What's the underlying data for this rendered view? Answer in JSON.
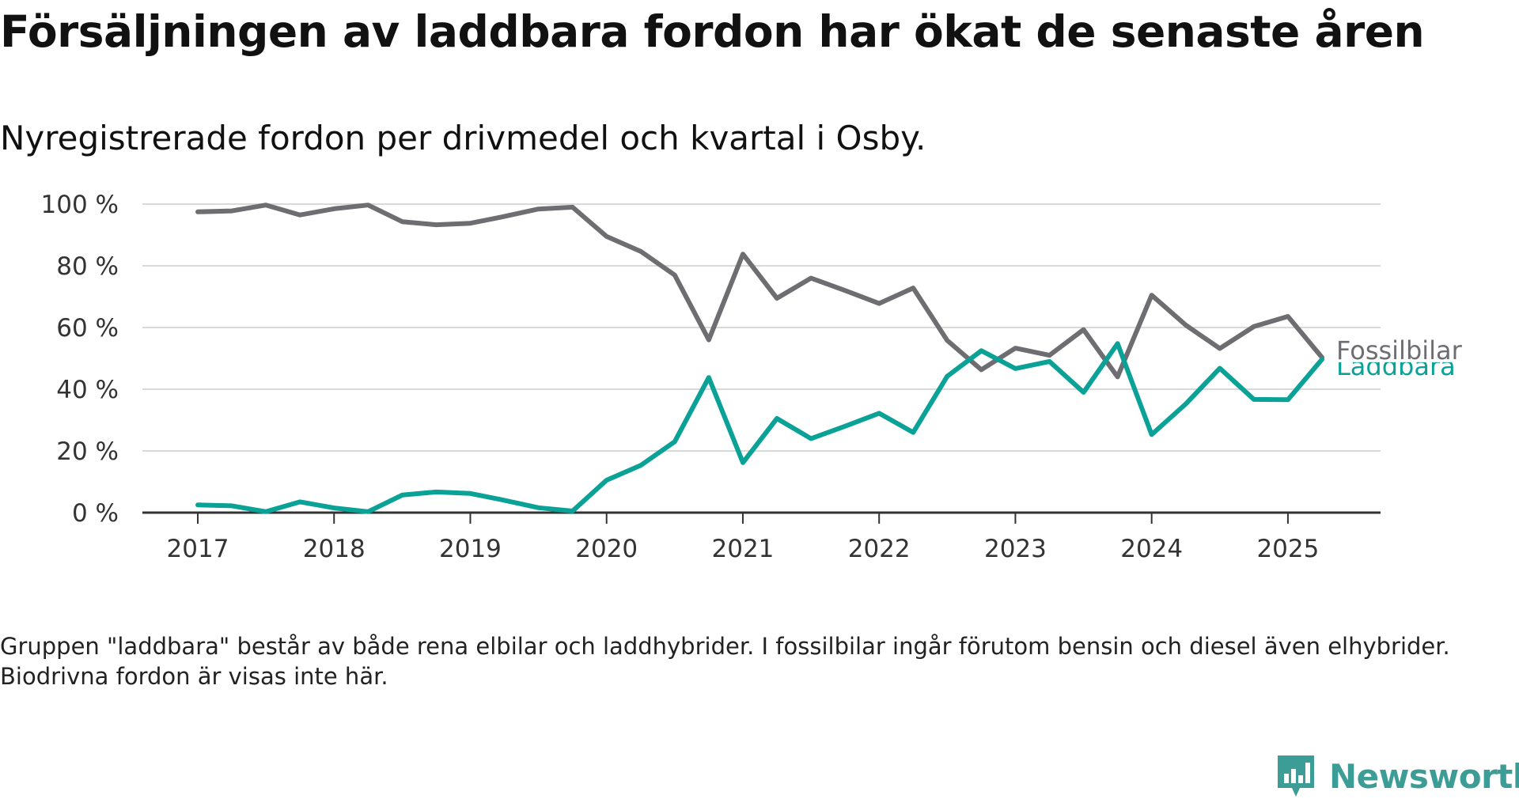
{
  "title": "Försäljningen av laddbara fordon har ökat de senaste åren",
  "subtitle": "Nyregistrerade fordon per drivmedel och kvartal i Osby.",
  "footnote": "Gruppen \"laddbara\" består av både rena elbilar och laddhybrider. I fossilbilar ingår förutom bensin och diesel även elhybrider. Biodrivna fordon är visas inte här.",
  "brand": {
    "name": "Newsworthy",
    "color": "#3c9c96"
  },
  "chart_data": {
    "type": "line",
    "x": [
      "2017Q1",
      "2017Q2",
      "2017Q3",
      "2017Q4",
      "2018Q1",
      "2018Q2",
      "2018Q3",
      "2018Q4",
      "2019Q1",
      "2019Q2",
      "2019Q3",
      "2019Q4",
      "2020Q1",
      "2020Q2",
      "2020Q3",
      "2020Q4",
      "2021Q1",
      "2021Q2",
      "2021Q3",
      "2021Q4",
      "2022Q1",
      "2022Q2",
      "2022Q3",
      "2022Q4",
      "2023Q1",
      "2023Q2",
      "2023Q3",
      "2023Q4",
      "2024Q1",
      "2024Q2",
      "2024Q3",
      "2024Q4",
      "2025Q1",
      "2025Q2"
    ],
    "x_tick_labels": [
      "2017",
      "2018",
      "2019",
      "2020",
      "2021",
      "2022",
      "2023",
      "2024",
      "2025"
    ],
    "y_ticks": [
      0,
      20,
      40,
      60,
      80,
      100
    ],
    "y_tick_labels": [
      "0 %",
      "20 %",
      "40 %",
      "60 %",
      "80 %",
      "100 %"
    ],
    "ylim": [
      0,
      100
    ],
    "grid": true,
    "series": [
      {
        "name": "Fossilbilar",
        "color": "#6e6e72",
        "values": [
          97.5,
          97.8,
          99.7,
          96.5,
          98.5,
          99.7,
          94.3,
          93.3,
          93.8,
          96,
          98.4,
          99,
          89.5,
          84.7,
          77,
          56,
          83.8,
          69.5,
          76,
          72,
          67.8,
          72.8,
          55.8,
          46.3,
          53.3,
          51,
          59.3,
          44,
          70.5,
          60.8,
          53.2,
          60.3,
          63.6,
          50.3
        ]
      },
      {
        "name": "Laddbara",
        "color": "#0aa196",
        "values": [
          2.5,
          2.2,
          0.3,
          3.5,
          1.5,
          0.3,
          5.7,
          6.7,
          6.2,
          4,
          1.6,
          0.5,
          10.5,
          15.3,
          23,
          43.8,
          16.2,
          30.5,
          24,
          28,
          32.2,
          26,
          44.2,
          52.5,
          46.7,
          49,
          39,
          54.8,
          25.3,
          35.2,
          46.8,
          36.7,
          36.6,
          49.7
        ]
      }
    ]
  }
}
